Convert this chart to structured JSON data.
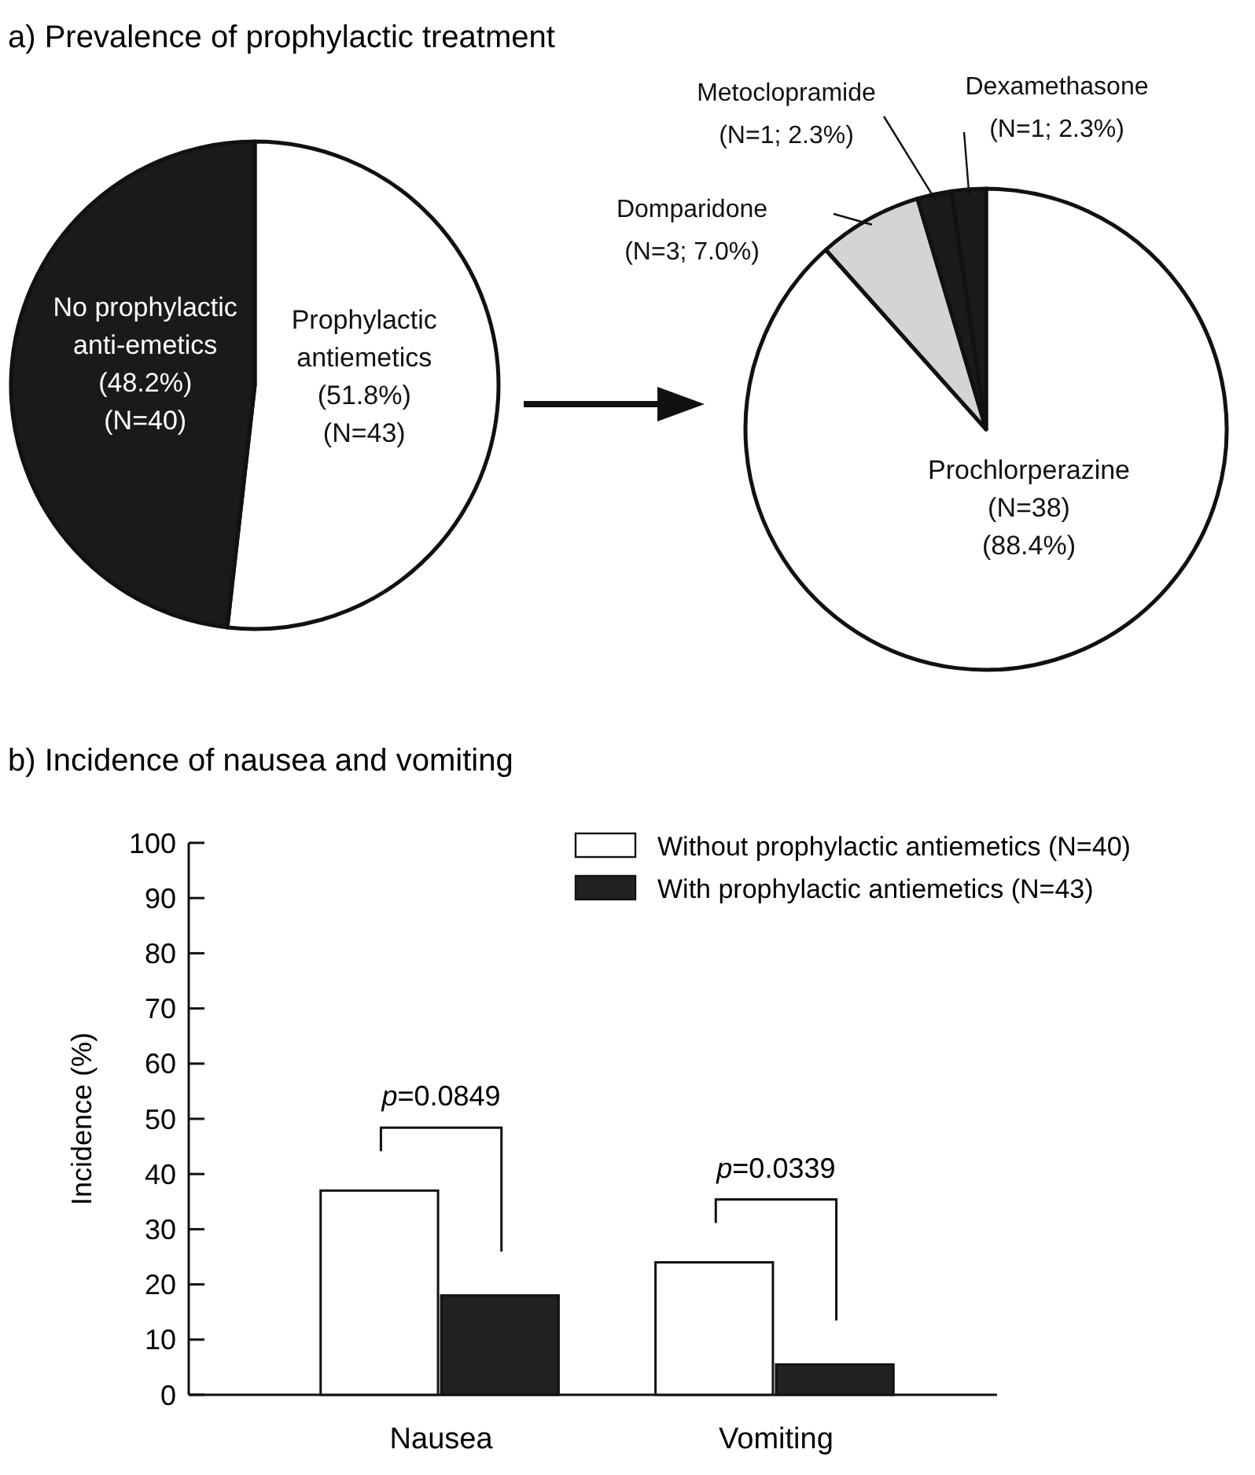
{
  "chart_data": [
    {
      "type": "pie",
      "title": "a) Prevalence of prophylactic treatment",
      "categories": [
        "Prophylactic antiemetics",
        "No prophylactic anti-emetics"
      ],
      "values": [
        51.8,
        48.2
      ],
      "colors": [
        "#ffffff",
        "#1a1a1a"
      ],
      "value_labels": [
        "(51.8%)\n(N=43)",
        "(48.2%)\n(N=40)"
      ]
    },
    {
      "type": "pie",
      "categories": [
        "Prochlorperazine",
        "Domparidone",
        "Metoclopramide",
        "Dexamethasone"
      ],
      "values": [
        88.4,
        7.0,
        2.3,
        2.3
      ],
      "colors": [
        "#ffffff",
        "#d4d4d4",
        "#1a1a1a",
        "#1a1a1a"
      ],
      "value_labels": [
        "(N=38)\n(88.4%)",
        "(N=3; 7.0%)",
        "(N=1; 2.3%)",
        "(N=1; 2.3%)"
      ]
    },
    {
      "type": "bar",
      "title": "b) Incidence of nausea and vomiting",
      "ylabel": "Incidence (%)",
      "categories": [
        "Nausea",
        "Vomiting"
      ],
      "series": [
        {
          "name": "Without prophylactic antiemetics (N=40)",
          "color": "#ffffff",
          "values": [
            37,
            24
          ]
        },
        {
          "name": "With prophylactic antiemetics (N=43)",
          "color": "#222222",
          "values": [
            18,
            5.5
          ]
        }
      ],
      "ylim": [
        0,
        100
      ],
      "yticks": [
        0,
        10,
        20,
        30,
        40,
        50,
        60,
        70,
        80,
        90,
        100
      ],
      "legend": "top right",
      "annotations": [
        "p=0.0849",
        "p=0.0339"
      ]
    }
  ]
}
